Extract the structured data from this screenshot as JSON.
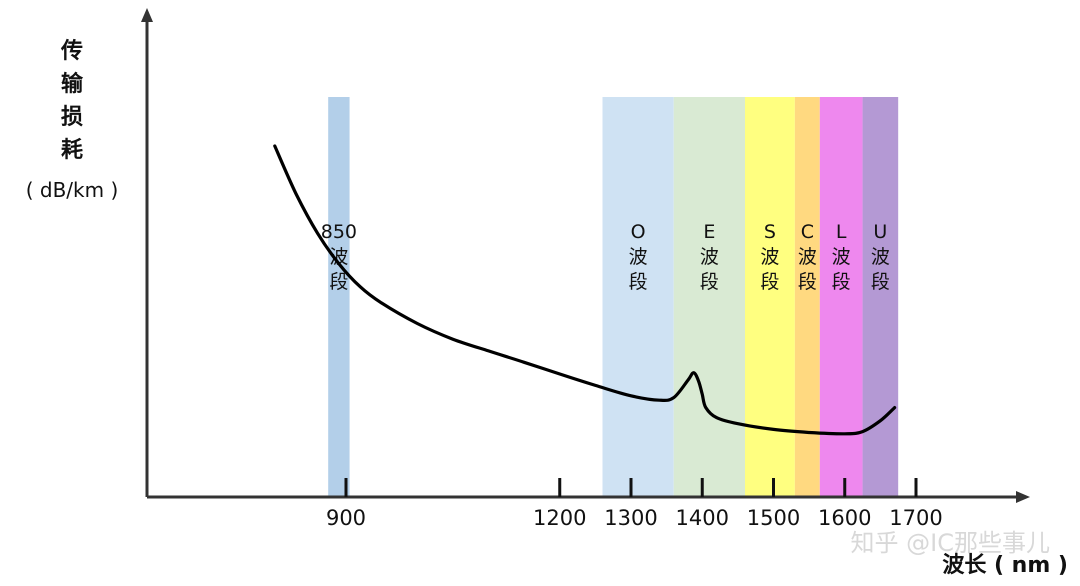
{
  "chart_data": {
    "type": "line",
    "title": "",
    "xlabel": "波长 ( nm )",
    "ylabel_lines": [
      "传",
      "输",
      "损",
      "耗",
      "( dB/km )"
    ],
    "xlim": [
      800,
      1730
    ],
    "ylim": [
      0,
      1
    ],
    "x_ticks": [
      900,
      1200,
      1300,
      1400,
      1500,
      1600,
      1700
    ],
    "grid": false,
    "legend": "none",
    "series": [
      {
        "color": "#000000",
        "x": [
          800,
          830,
          860,
          890,
          920,
          950,
          1000,
          1050,
          1100,
          1150,
          1200,
          1250,
          1300,
          1340,
          1360,
          1380,
          1388,
          1395,
          1400,
          1405,
          1420,
          1450,
          1500,
          1550,
          1600,
          1625,
          1650,
          1670
        ],
        "y": [
          0.805,
          0.695,
          0.605,
          0.535,
          0.482,
          0.445,
          0.398,
          0.362,
          0.335,
          0.309,
          0.282,
          0.256,
          0.232,
          0.222,
          0.228,
          0.268,
          0.285,
          0.265,
          0.235,
          0.205,
          0.182,
          0.168,
          0.155,
          0.148,
          0.145,
          0.15,
          0.175,
          0.205
        ]
      }
    ],
    "bands": [
      {
        "label_lines": [
          "850",
          "波",
          "段"
        ],
        "start": 875,
        "end": 905,
        "color": "#b3cfe9"
      },
      {
        "label_lines": [
          "O",
          "波",
          "段"
        ],
        "start": 1260,
        "end": 1360,
        "color": "#cfe2f3"
      },
      {
        "label_lines": [
          "E",
          "波",
          "段"
        ],
        "start": 1360,
        "end": 1460,
        "color": "#d9ead3"
      },
      {
        "label_lines": [
          "S",
          "波",
          "段"
        ],
        "start": 1460,
        "end": 1530,
        "color": "#ffff80"
      },
      {
        "label_lines": [
          "C",
          "波",
          "段"
        ],
        "start": 1530,
        "end": 1565,
        "color": "#ffd980"
      },
      {
        "label_lines": [
          "L",
          "波",
          "段"
        ],
        "start": 1565,
        "end": 1625,
        "color": "#ee88ee"
      },
      {
        "label_lines": [
          "U",
          "波",
          "段"
        ],
        "start": 1625,
        "end": 1675,
        "color": "#b499d4"
      }
    ],
    "watermark": "知乎 @IC那些事儿"
  }
}
